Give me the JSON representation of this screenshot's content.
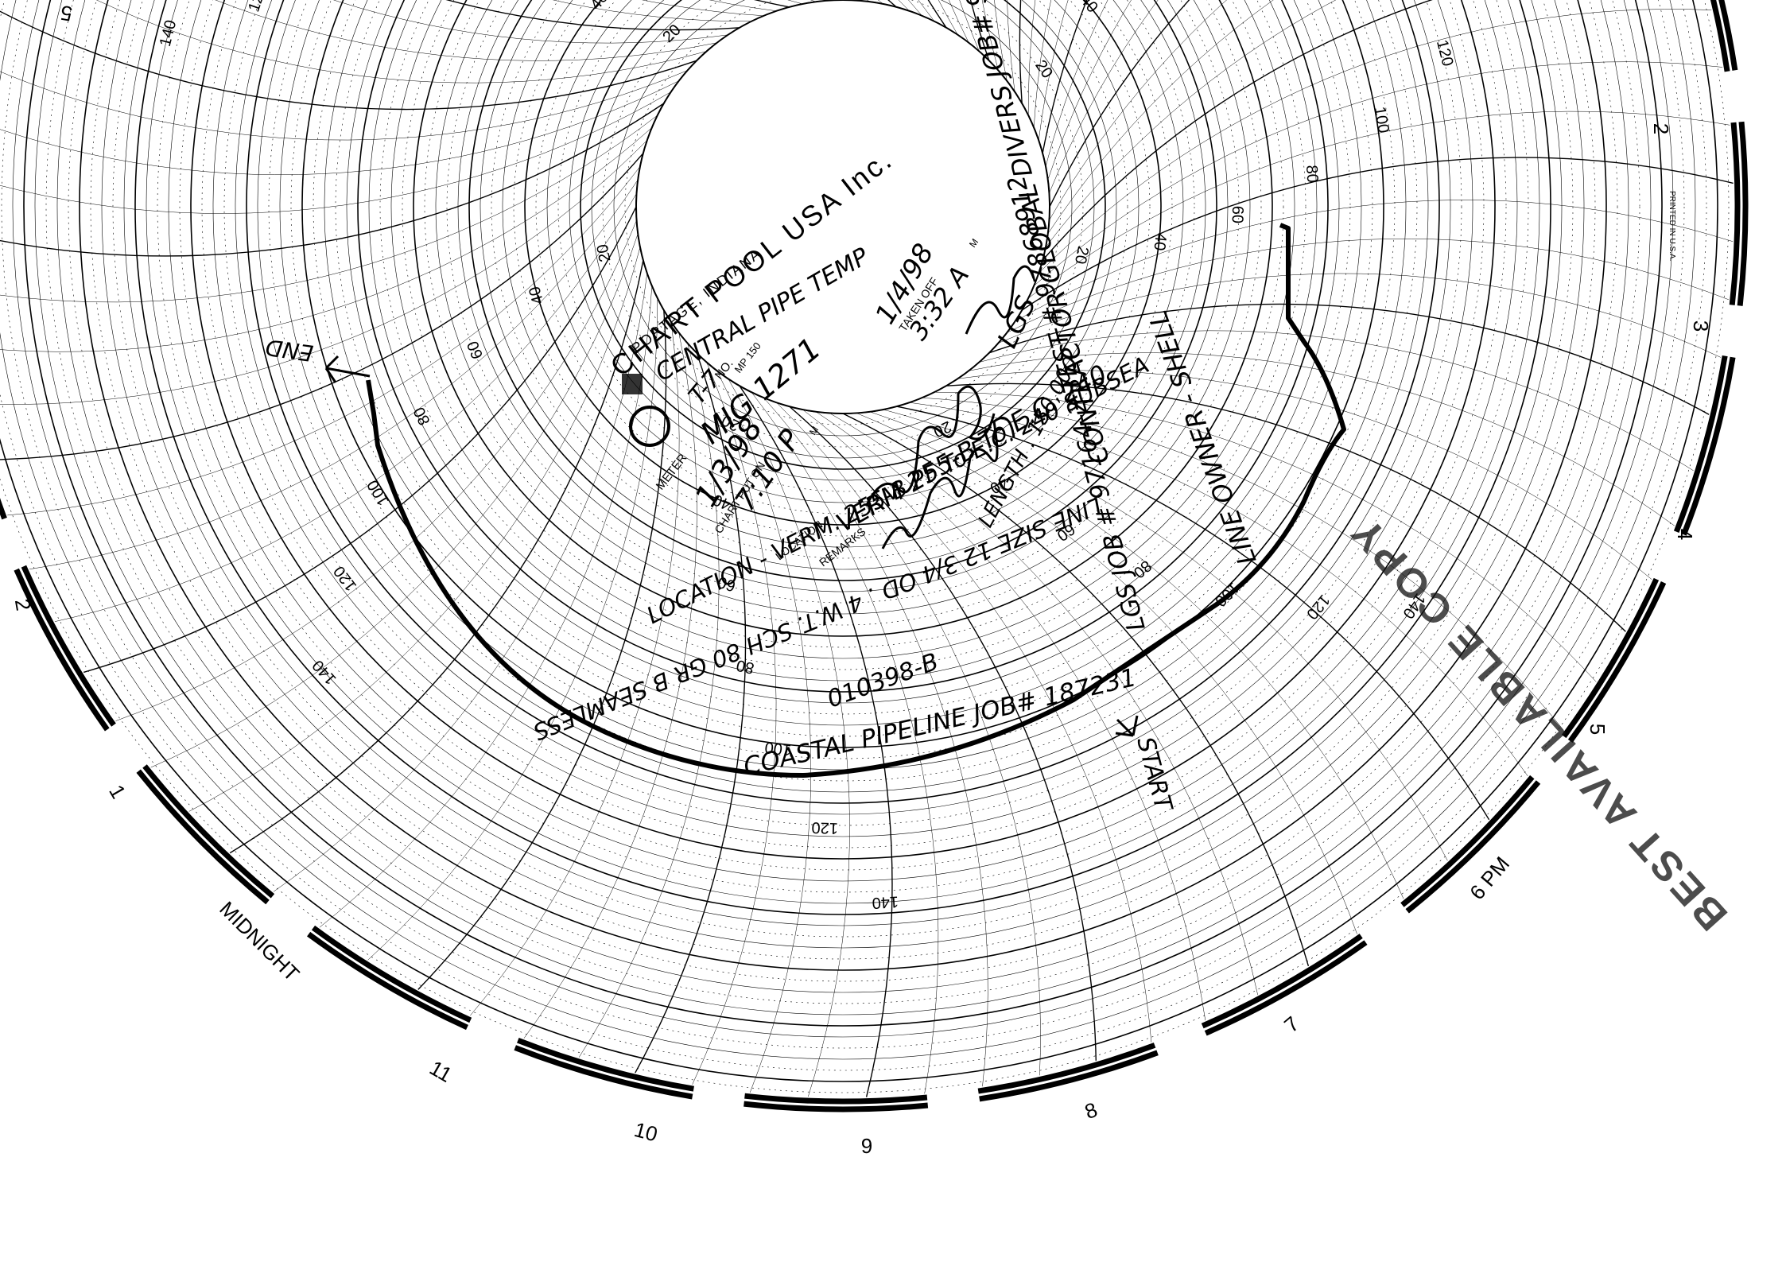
{
  "printer": {
    "company": "CHART POOL USA Inc.",
    "city": "PORTAGE, INDIANA",
    "printed_in": "PRINTED IN U.S.A."
  },
  "chart_labels": {
    "meter": "METER",
    "no": "NO.",
    "chart_put_on": "CHART PUT ON",
    "taken_off": "TAKEN OFF",
    "location": "LOCATION",
    "remarks": "REMARKS",
    "m": "M"
  },
  "chart_data": {
    "type": "circular-recorder",
    "ring_labels": [
      "20",
      "40",
      "60",
      "80",
      "100",
      "120",
      "140"
    ],
    "hour_labels": [
      "2",
      "3",
      "4",
      "5",
      "6 PM",
      "7",
      "8",
      "9",
      "10",
      "11",
      "MIDNIGHT",
      "1",
      "2",
      "5"
    ],
    "trace": {
      "start_label": "START",
      "end_label": "END"
    }
  },
  "handwriting": {
    "meter": "CENTRAL PIPE TEMP",
    "number": "T-7",
    "number_print": "MP 150",
    "mig": "MIG 1271",
    "put_on_date": "1/3/98",
    "put_on_time": "7:10 P",
    "taken_off_date": "1/4/98",
    "taken_off_time": "3:32 A",
    "location": "VERM 255-B To E.C. 240",
    "lines": [
      "CONTRACTOR GLOBAL DIVERS JOB# 97645",
      "LINE OWNER - SHELL",
      "LGS JOB # 97164-2 TEST # 97868912",
      "LOCATION - VERM. 255-B PF To E.C. 240 SUBSEA",
      "LINE SIZE 12 3/4 OD . 4 W.T. SCH 80 GR B SEAMLESS",
      "LENGTH . 150,000",
      "COASTAL PIPELINE JOB# 187231"
    ],
    "test_number": "010398-B",
    "initials": "LGS"
  },
  "stamp": "BEST AVAILABLE COPY"
}
